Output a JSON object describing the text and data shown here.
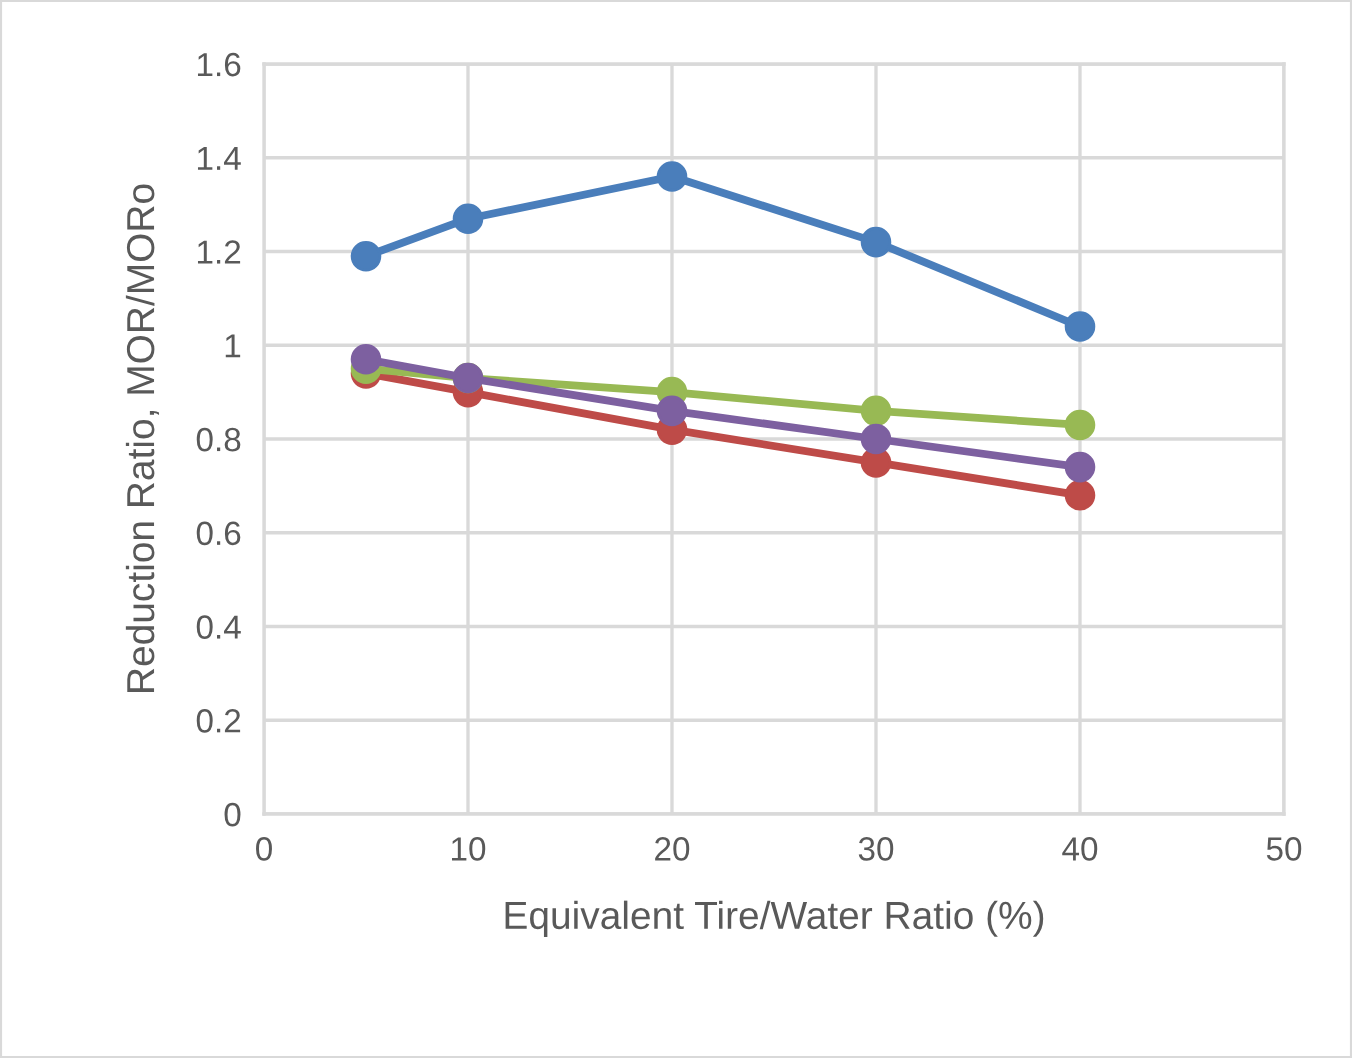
{
  "chart_data": {
    "type": "line",
    "xlabel": "Equivalent Tire/Water Ratio (%)",
    "ylabel": "Reduction Ratio, MOR/MORo",
    "x": [
      5,
      10,
      20,
      30,
      40
    ],
    "series": [
      {
        "color": "#4a7ebb",
        "values": [
          1.19,
          1.27,
          1.36,
          1.22,
          1.04
        ]
      },
      {
        "color": "#be4b48",
        "values": [
          0.94,
          0.9,
          0.82,
          0.75,
          0.68
        ]
      },
      {
        "color": "#98b954",
        "values": [
          0.95,
          0.93,
          0.9,
          0.86,
          0.83
        ]
      },
      {
        "color": "#7d60a0",
        "values": [
          0.97,
          0.93,
          0.86,
          0.8,
          0.74
        ]
      }
    ],
    "xlim": [
      0,
      50
    ],
    "xticks": [
      0,
      10,
      20,
      30,
      40,
      50
    ],
    "ylim": [
      0,
      1.6
    ],
    "yticks": [
      0,
      0.2,
      0.4,
      0.6,
      0.8,
      1,
      1.2,
      1.4,
      1.6
    ],
    "grid": true,
    "marker": "circle",
    "line_style": "solid",
    "legend": false
  }
}
